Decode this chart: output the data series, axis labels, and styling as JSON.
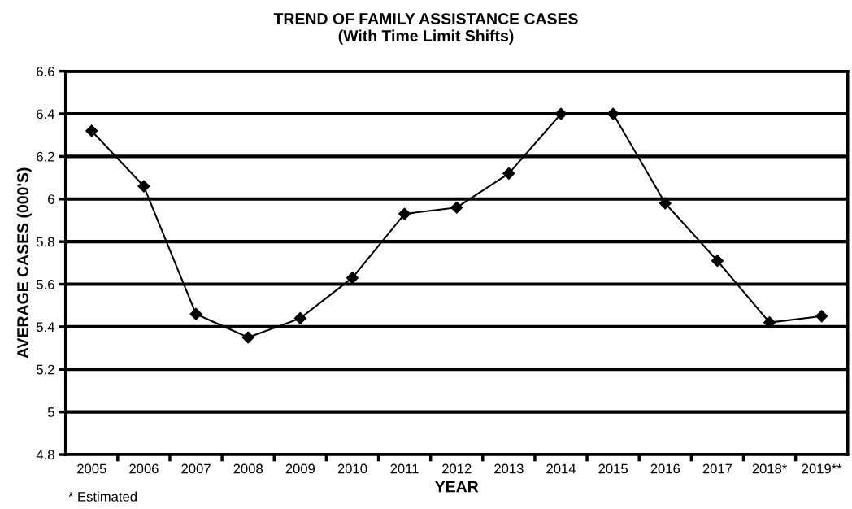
{
  "chart_data": {
    "type": "line",
    "title": "TREND OF FAMILY ASSISTANCE CASES\n(With Time Limit Shifts)",
    "xlabel": "YEAR",
    "ylabel": "AVERAGE CASES (000'S)",
    "categories": [
      "2005",
      "2006",
      "2007",
      "2008",
      "2009",
      "2010",
      "2011",
      "2012",
      "2013",
      "2014",
      "2015",
      "2016",
      "2017",
      "2018*",
      "2019**"
    ],
    "series": [
      {
        "color": "#000000",
        "values": [
          6.32,
          6.06,
          5.46,
          5.35,
          5.44,
          5.63,
          5.93,
          5.96,
          6.12,
          6.4,
          6.4,
          5.98,
          5.71,
          5.42,
          5.45
        ]
      }
    ],
    "ylim": [
      4.8,
      6.6
    ],
    "yticks": [
      4.8,
      5,
      5.2,
      5.4,
      5.6,
      5.8,
      6,
      6.2,
      6.4,
      6.6
    ],
    "grid": "y",
    "marker": "diamond",
    "line_style": "solid",
    "annotations": [
      "* Estimated"
    ]
  }
}
